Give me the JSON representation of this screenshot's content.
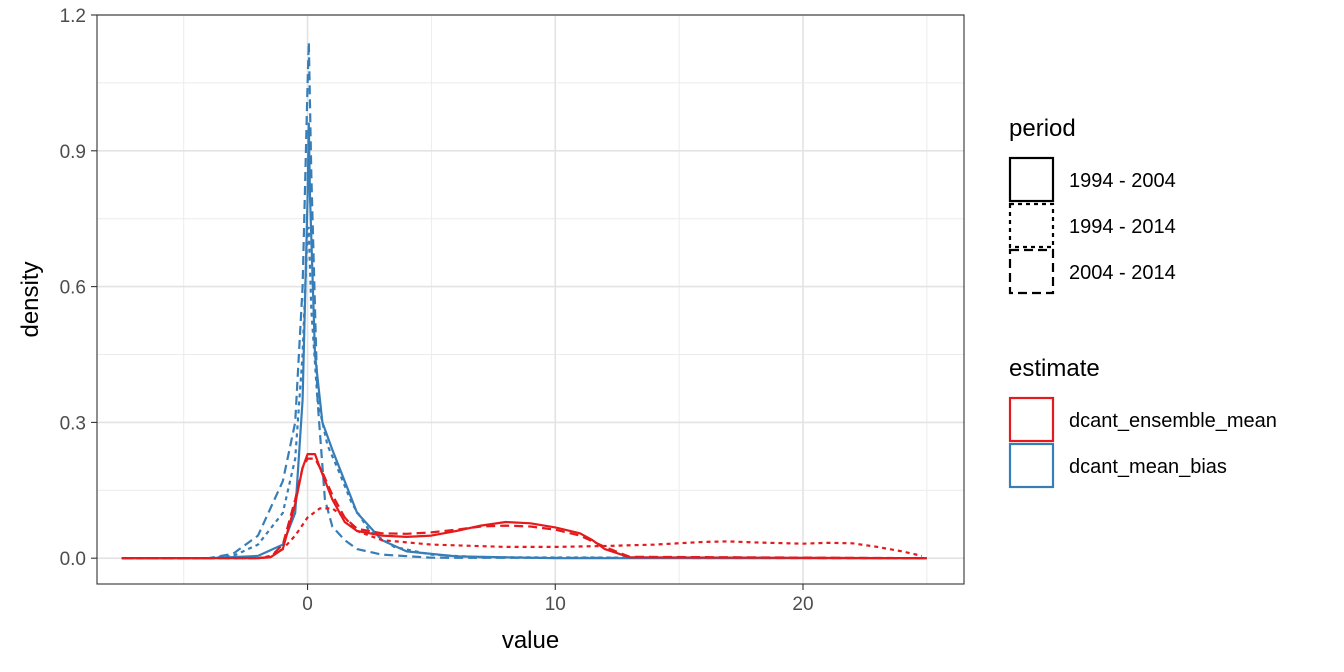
{
  "chart_data": {
    "type": "line",
    "title": "",
    "xlabel": "value",
    "ylabel": "density",
    "xlim": [
      -8.5,
      26.5
    ],
    "ylim": [
      -0.057,
      1.2
    ],
    "x_ticks": [
      0,
      10,
      20
    ],
    "x_tick_labels": [
      "0",
      "10",
      "20"
    ],
    "y_ticks": [
      0.0,
      0.3,
      0.6,
      0.9,
      1.2
    ],
    "y_tick_labels": [
      "0.0",
      "0.3",
      "0.6",
      "0.9",
      "1.2"
    ],
    "grid": true,
    "legend_position": "right",
    "legends": [
      {
        "title": "period",
        "keys": [
          {
            "label": "1994 - 2004",
            "linetype": "solid"
          },
          {
            "label": "1994 - 2014",
            "linetype": "dotted"
          },
          {
            "label": "2004 - 2014",
            "linetype": "dashed"
          }
        ]
      },
      {
        "title": "estimate",
        "keys": [
          {
            "label": "dcant_ensemble_mean",
            "color": "#E41A1C"
          },
          {
            "label": "dcant_mean_bias",
            "color": "#377EB8"
          }
        ]
      }
    ],
    "series": [
      {
        "estimate": "dcant_mean_bias",
        "period": "1994 - 2004",
        "color": "#377EB8",
        "linetype": "solid",
        "x": [
          -7.5,
          -4,
          -2,
          -1,
          -0.5,
          -0.2,
          0,
          0.05,
          0.1,
          0.3,
          0.6,
          1,
          1.5,
          2,
          3,
          4,
          6,
          10,
          25
        ],
        "y": [
          0,
          0,
          0.005,
          0.03,
          0.1,
          0.35,
          0.8,
          0.96,
          0.8,
          0.45,
          0.3,
          0.24,
          0.17,
          0.1,
          0.04,
          0.015,
          0.004,
          0,
          0
        ]
      },
      {
        "estimate": "dcant_mean_bias",
        "period": "1994 - 2014",
        "color": "#377EB8",
        "linetype": "dotted",
        "x": [
          -7.5,
          -4,
          -3,
          -2,
          -1,
          -0.5,
          -0.2,
          0,
          0.05,
          0.15,
          0.4,
          0.8,
          1.2,
          1.8,
          2.5,
          3.5,
          5,
          7,
          25
        ],
        "y": [
          0,
          0,
          0.005,
          0.03,
          0.1,
          0.22,
          0.45,
          0.73,
          0.73,
          0.55,
          0.35,
          0.25,
          0.2,
          0.12,
          0.06,
          0.025,
          0.008,
          0.002,
          0
        ]
      },
      {
        "estimate": "dcant_mean_bias",
        "period": "2004 - 2014",
        "color": "#377EB8",
        "linetype": "dashed",
        "x": [
          -7.5,
          -4,
          -3,
          -2,
          -1,
          -0.5,
          -0.2,
          0,
          0.05,
          0.15,
          0.4,
          0.7,
          1,
          1.5,
          2,
          3,
          5,
          25
        ],
        "y": [
          0,
          0,
          0.01,
          0.05,
          0.17,
          0.3,
          0.6,
          1.05,
          1.14,
          0.85,
          0.35,
          0.13,
          0.07,
          0.04,
          0.02,
          0.008,
          0.001,
          0
        ]
      },
      {
        "estimate": "dcant_ensemble_mean",
        "period": "1994 - 2004",
        "color": "#E41A1C",
        "linetype": "solid",
        "x": [
          -7.5,
          -2,
          -1.5,
          -1,
          -0.5,
          -0.2,
          0,
          0.3,
          0.5,
          1,
          1.5,
          2,
          3,
          4,
          5,
          6,
          7,
          8,
          9,
          10,
          11,
          11.5,
          12,
          13,
          25
        ],
        "y": [
          0,
          0,
          0.002,
          0.02,
          0.12,
          0.2,
          0.23,
          0.23,
          0.2,
          0.13,
          0.08,
          0.06,
          0.05,
          0.047,
          0.05,
          0.06,
          0.072,
          0.08,
          0.077,
          0.068,
          0.055,
          0.04,
          0.02,
          0.002,
          0
        ]
      },
      {
        "estimate": "dcant_ensemble_mean",
        "period": "1994 - 2014",
        "color": "#E41A1C",
        "linetype": "dotted",
        "x": [
          -7.5,
          -2,
          -1.5,
          -1,
          -0.5,
          0,
          0.5,
          1,
          1.5,
          2,
          3,
          5,
          8,
          10,
          12,
          14,
          16,
          17,
          18,
          20,
          21,
          22,
          23,
          24,
          24.8
        ],
        "y": [
          0,
          0,
          0.005,
          0.02,
          0.05,
          0.09,
          0.11,
          0.11,
          0.09,
          0.06,
          0.04,
          0.03,
          0.025,
          0.025,
          0.027,
          0.03,
          0.036,
          0.037,
          0.035,
          0.032,
          0.034,
          0.033,
          0.025,
          0.015,
          0.005
        ]
      },
      {
        "estimate": "dcant_ensemble_mean",
        "period": "2004 - 2014",
        "color": "#E41A1C",
        "linetype": "dashed",
        "x": [
          -7.5,
          -2,
          -1.5,
          -1,
          -0.5,
          -0.2,
          0,
          0.3,
          0.6,
          1,
          1.5,
          2,
          3,
          4,
          5,
          6,
          7,
          8,
          9,
          10,
          11,
          12,
          13,
          25
        ],
        "y": [
          0,
          0,
          0.003,
          0.03,
          0.13,
          0.2,
          0.22,
          0.22,
          0.19,
          0.14,
          0.09,
          0.065,
          0.055,
          0.054,
          0.057,
          0.063,
          0.07,
          0.072,
          0.07,
          0.063,
          0.05,
          0.025,
          0.003,
          0
        ]
      }
    ]
  }
}
